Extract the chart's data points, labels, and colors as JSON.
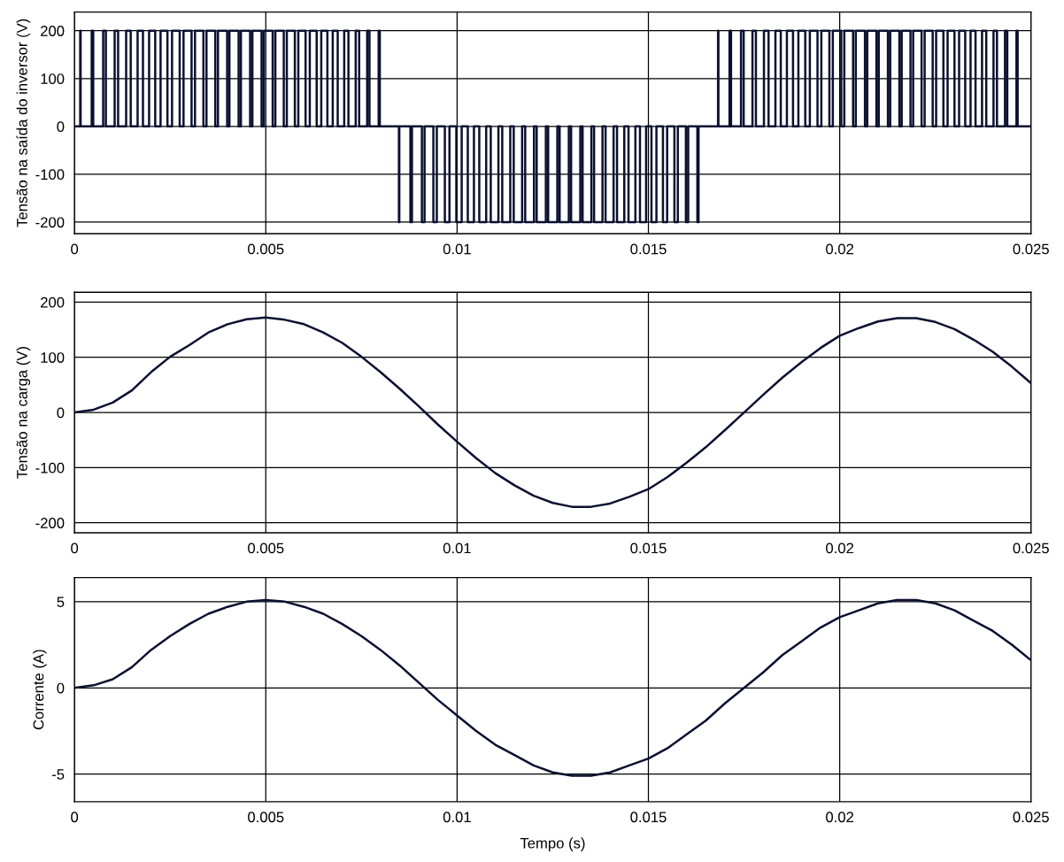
{
  "chart_data": [
    {
      "type": "step",
      "ylabel": "Tensão na saída do inversor (V)",
      "xlim": [
        0,
        0.025
      ],
      "ylim": [
        -224,
        239
      ],
      "xticks": [
        0,
        0.005,
        0.01,
        0.015,
        0.02,
        0.025
      ],
      "yticks": [
        -200,
        -100,
        0,
        100,
        200
      ],
      "grid": true,
      "line_style": "solid",
      "series": [
        {
          "color": "#0a1030",
          "x": [
            0,
            0.00015,
            0.00016,
            0.00045,
            0.00049,
            0.00075,
            0.00082,
            0.00105,
            0.00114,
            0.00135,
            0.00147,
            0.00165,
            0.00179,
            0.00195,
            0.00211,
            0.00225,
            0.00243,
            0.00255,
            0.00275,
            0.00285,
            0.00306,
            0.00315,
            0.00337,
            0.00345,
            0.00368,
            0.00375,
            0.00399,
            0.00405,
            0.00429,
            0.00435,
            0.00459,
            0.00465,
            0.00489,
            0.00495,
            0.00518,
            0.00525,
            0.00547,
            0.00555,
            0.00576,
            0.00585,
            0.00604,
            0.00615,
            0.00633,
            0.00645,
            0.00661,
            0.00675,
            0.00688,
            0.00705,
            0.00716,
            0.00735,
            0.00744,
            0.00765,
            0.00771,
            0.00795,
            0.00798,
            0.00848,
            0.00849,
            0.00878,
            0.00882,
            0.00908,
            0.00915,
            0.00938,
            0.00947,
            0.00968,
            0.0098,
            0.00998,
            0.01012,
            0.01028,
            0.01044,
            0.01058,
            0.01076,
            0.01088,
            0.01108,
            0.01118,
            0.01139,
            0.01148,
            0.0117,
            0.01178,
            0.01201,
            0.01208,
            0.01232,
            0.01238,
            0.01262,
            0.01268,
            0.01292,
            0.01298,
            0.01322,
            0.01328,
            0.01351,
            0.01358,
            0.0138,
            0.01388,
            0.01409,
            0.01418,
            0.01437,
            0.01448,
            0.01466,
            0.01478,
            0.01494,
            0.01508,
            0.01521,
            0.01538,
            0.01549,
            0.01568,
            0.01577,
            0.01598,
            0.01604,
            0.01628,
            0.01631,
            0.01682,
            0.01683,
            0.01712,
            0.01716,
            0.01742,
            0.01749,
            0.01772,
            0.01781,
            0.01802,
            0.01814,
            0.01832,
            0.01846,
            0.01862,
            0.01878,
            0.01892,
            0.0191,
            0.01922,
            0.01942,
            0.01952,
            0.01973,
            0.01982,
            0.02004,
            0.02012,
            0.02035,
            0.02042,
            0.02066,
            0.02072,
            0.02096,
            0.02102,
            0.02126,
            0.02132,
            0.02156,
            0.02162,
            0.02185,
            0.02192,
            0.02214,
            0.02222,
            0.02243,
            0.02252,
            0.02271,
            0.02282,
            0.023,
            0.02312,
            0.02328,
            0.02342,
            0.02355,
            0.02372,
            0.02383,
            0.02402,
            0.02411,
            0.02432,
            0.02438,
            0.02462,
            0.02465,
            0.025
          ],
          "values": [
            0,
            200,
            0,
            200,
            0,
            200,
            0,
            200,
            0,
            200,
            0,
            200,
            0,
            200,
            0,
            200,
            0,
            200,
            0,
            200,
            0,
            200,
            0,
            200,
            0,
            200,
            0,
            200,
            0,
            200,
            0,
            200,
            0,
            200,
            0,
            200,
            0,
            200,
            0,
            200,
            0,
            200,
            0,
            200,
            0,
            200,
            0,
            200,
            0,
            200,
            0,
            200,
            0,
            200,
            0,
            -200,
            0,
            -200,
            0,
            -200,
            0,
            -200,
            0,
            -200,
            0,
            -200,
            0,
            -200,
            0,
            -200,
            0,
            -200,
            0,
            -200,
            0,
            -200,
            0,
            -200,
            0,
            -200,
            0,
            -200,
            0,
            -200,
            0,
            -200,
            0,
            -200,
            0,
            -200,
            0,
            -200,
            0,
            -200,
            0,
            -200,
            0,
            -200,
            0,
            -200,
            0,
            -200,
            0,
            -200,
            0,
            -200,
            0,
            -200,
            0,
            200,
            0,
            200,
            0,
            200,
            0,
            200,
            0,
            200,
            0,
            200,
            0,
            200,
            0,
            200,
            0,
            200,
            0,
            200,
            0,
            200,
            0,
            200,
            0,
            200,
            0,
            200,
            0,
            200,
            0,
            200,
            0,
            200,
            0,
            200,
            0,
            200,
            0,
            200,
            0,
            200,
            0,
            200,
            0,
            200,
            0,
            200,
            0,
            200,
            0,
            200,
            0,
            200,
            0,
            0
          ]
        }
      ]
    },
    {
      "type": "line",
      "ylabel": "Tensão na carga (V)",
      "xlim": [
        0,
        0.025
      ],
      "ylim": [
        -218,
        218
      ],
      "xticks": [
        0,
        0.005,
        0.01,
        0.015,
        0.02,
        0.025
      ],
      "yticks": [
        -200,
        -100,
        0,
        100,
        200
      ],
      "grid": true,
      "line_style": "solid",
      "series": [
        {
          "color": "#0a1030",
          "x": [
            0,
            0.0005,
            0.001,
            0.0015,
            0.002,
            0.0025,
            0.003,
            0.0035,
            0.004,
            0.0045,
            0.005,
            0.0055,
            0.006,
            0.0065,
            0.007,
            0.0075,
            0.008,
            0.0085,
            0.009,
            0.0095,
            0.01,
            0.0105,
            0.011,
            0.0115,
            0.012,
            0.0125,
            0.013,
            0.0135,
            0.014,
            0.0145,
            0.015,
            0.0155,
            0.016,
            0.0165,
            0.017,
            0.0175,
            0.018,
            0.0185,
            0.019,
            0.0195,
            0.02,
            0.0205,
            0.021,
            0.0215,
            0.022,
            0.0225,
            0.023,
            0.0235,
            0.024,
            0.0245,
            0.025
          ],
          "values": [
            0,
            5,
            18,
            40,
            73,
            101,
            122,
            145,
            160,
            169,
            172,
            168,
            160,
            145,
            126,
            101,
            73,
            43,
            11,
            -22,
            -53,
            -83,
            -110,
            -132,
            -151,
            -164,
            -171,
            -171,
            -165,
            -153,
            -139,
            -117,
            -91,
            -63,
            -32,
            0,
            32,
            63,
            91,
            117,
            139,
            153,
            165,
            171,
            171,
            164,
            151,
            132,
            110,
            83,
            53
          ]
        }
      ]
    },
    {
      "type": "line",
      "ylabel": "Corrente (A)",
      "xlabel": "Tempo (s)",
      "xlim": [
        0,
        0.025
      ],
      "ylim": [
        -6.6,
        6.4
      ],
      "xticks": [
        0,
        0.005,
        0.01,
        0.015,
        0.02,
        0.025
      ],
      "yticks": [
        -5,
        0,
        5
      ],
      "grid": true,
      "line_style": "solid",
      "series": [
        {
          "color": "#0a1030",
          "x": [
            0,
            0.0005,
            0.001,
            0.0015,
            0.002,
            0.0025,
            0.003,
            0.0035,
            0.004,
            0.0045,
            0.005,
            0.0055,
            0.006,
            0.0065,
            0.007,
            0.0075,
            0.008,
            0.0085,
            0.009,
            0.0095,
            0.01,
            0.0105,
            0.011,
            0.0115,
            0.012,
            0.0125,
            0.013,
            0.0135,
            0.014,
            0.0145,
            0.015,
            0.0155,
            0.016,
            0.0165,
            0.017,
            0.0175,
            0.018,
            0.0185,
            0.019,
            0.0195,
            0.02,
            0.0205,
            0.021,
            0.0215,
            0.022,
            0.0225,
            0.023,
            0.0235,
            0.024,
            0.0245,
            0.025
          ],
          "values": [
            0,
            0.15,
            0.5,
            1.2,
            2.2,
            3.0,
            3.7,
            4.3,
            4.7,
            5.0,
            5.1,
            5.0,
            4.7,
            4.3,
            3.7,
            3.0,
            2.2,
            1.3,
            0.3,
            -0.7,
            -1.6,
            -2.5,
            -3.3,
            -3.9,
            -4.5,
            -4.9,
            -5.1,
            -5.1,
            -4.9,
            -4.5,
            -4.1,
            -3.5,
            -2.7,
            -1.9,
            -0.9,
            0,
            0.9,
            1.9,
            2.7,
            3.5,
            4.1,
            4.5,
            4.9,
            5.1,
            5.1,
            4.9,
            4.5,
            3.9,
            3.3,
            2.5,
            1.6
          ]
        }
      ]
    }
  ]
}
